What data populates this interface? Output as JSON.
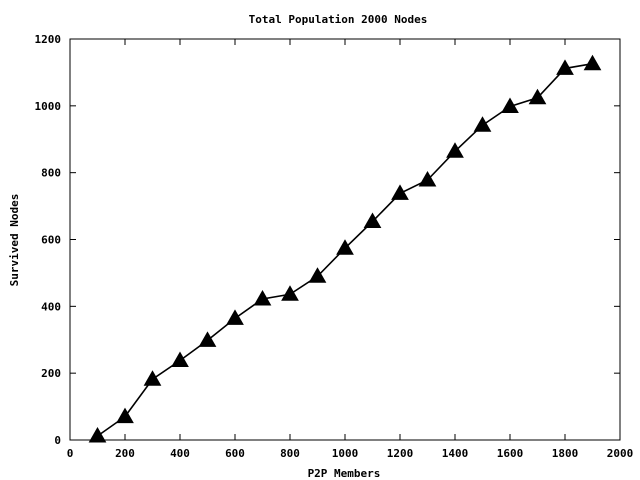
{
  "chart_data": {
    "type": "line",
    "title": "Total Population 2000 Nodes",
    "xlabel": "P2P Members",
    "ylabel": "Survived Nodes",
    "xlim": [
      0,
      2000
    ],
    "ylim": [
      0,
      1200
    ],
    "xticks": [
      "0",
      "200",
      "400",
      "600",
      "800",
      "1000",
      "1200",
      "1400",
      "1600",
      "1800",
      "2000"
    ],
    "yticks": [
      "0",
      "200",
      "400",
      "600",
      "800",
      "1000",
      "1200"
    ],
    "grid": false,
    "marker": "triangle",
    "line_color": "#000000",
    "series": [
      {
        "x": [
          100,
          200,
          300,
          400,
          500,
          600,
          700,
          800,
          900,
          1000,
          1100,
          1200,
          1300,
          1400,
          1500,
          1600,
          1700,
          1800,
          1900
        ],
        "values": [
          12,
          70,
          182,
          238,
          298,
          364,
          422,
          436,
          490,
          574,
          654,
          738,
          778,
          864,
          942,
          998,
          1024,
          1112,
          1126
        ]
      }
    ]
  }
}
